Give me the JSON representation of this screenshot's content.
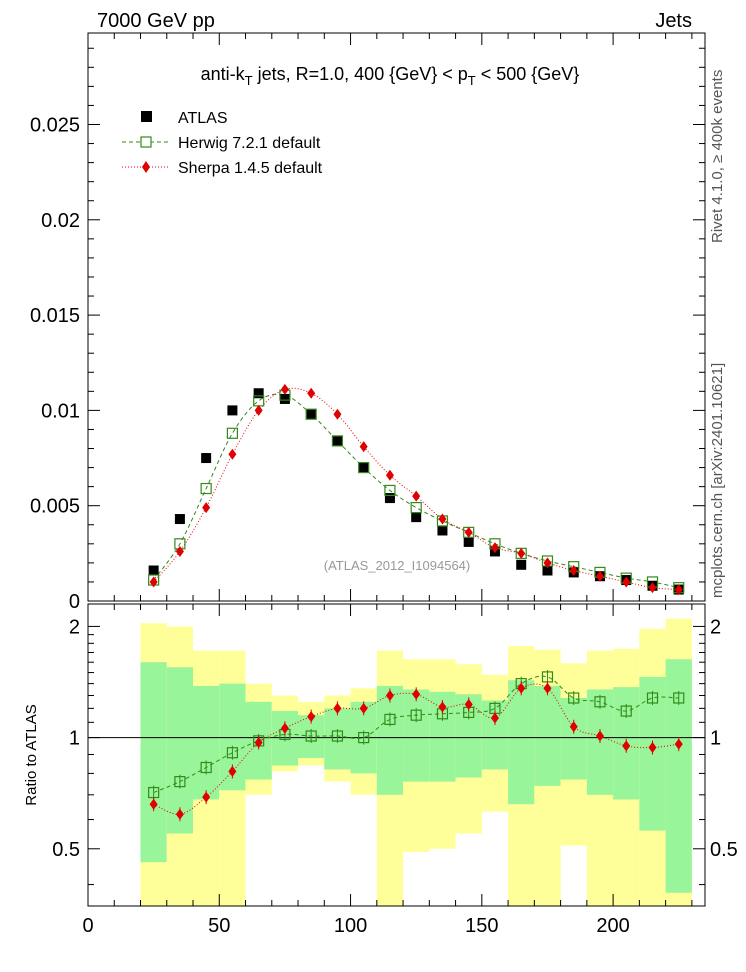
{
  "header": {
    "left": "7000 GeV pp",
    "right": "Jets"
  },
  "side_labels": {
    "rivet": "Rivet 4.1.0, ≥ 400k events",
    "mcplots": "mcplots.cern.ch [arXiv:2401.10621]"
  },
  "chart_data": {
    "type": "scatter",
    "title": {
      "prefix": "anti-k",
      "sub1": "T",
      "middle": " jets, R=1.0, 400 {GeV}   < p",
      "sub2": "T",
      "suffix": " < 500 {GeV}"
    },
    "watermark": "(ATLAS_2012_I1094564)",
    "ylabel_ratio": "Ratio to ATLAS",
    "xlim": [
      0,
      235
    ],
    "ylim_main": [
      0,
      0.0298
    ],
    "ylim_ratio": [
      0.35,
      2.3
    ],
    "x_ticks": [
      0,
      50,
      100,
      150,
      200
    ],
    "x_tick_labels": [
      "0",
      "50",
      "100",
      "150",
      "200"
    ],
    "y_ticks_main": [
      0,
      0.005,
      0.01,
      0.015,
      0.02,
      0.025
    ],
    "y_tick_labels_main": [
      "0",
      "0.005",
      "0.01",
      "0.015",
      "0.02",
      "0.025"
    ],
    "y_ticks_ratio": [
      0.5,
      1,
      2
    ],
    "y_tick_labels_ratio": [
      "0.5",
      "1",
      "2"
    ],
    "x": [
      25,
      35,
      45,
      55,
      65,
      75,
      85,
      95,
      105,
      115,
      125,
      135,
      145,
      155,
      165,
      175,
      185,
      195,
      205,
      215,
      225
    ],
    "series": [
      {
        "name": "ATLAS",
        "color": "#000000",
        "marker": "square-filled",
        "values": [
          0.0016,
          0.0043,
          0.0075,
          0.01,
          0.0109,
          0.0106,
          0.0098,
          0.0084,
          0.007,
          0.0054,
          0.0044,
          0.0037,
          0.0031,
          0.0026,
          0.0019,
          0.0016,
          0.0015,
          0.0013,
          0.0011,
          0.0008,
          0.0006
        ]
      },
      {
        "name": "Herwig 7.2.1 default",
        "color": "#338a1a",
        "marker": "square-open",
        "line": "dashed",
        "values": [
          0.0011,
          0.003,
          0.0059,
          0.0088,
          0.0105,
          0.0108,
          0.0098,
          0.0084,
          0.007,
          0.0058,
          0.0049,
          0.0042,
          0.0036,
          0.003,
          0.0025,
          0.0021,
          0.0018,
          0.0015,
          0.0012,
          0.001,
          0.0007
        ]
      },
      {
        "name": "Sherpa 1.4.5 default",
        "color": "#e00000",
        "marker": "diamond-filled",
        "line": "dotted",
        "values": [
          0.001,
          0.0026,
          0.0049,
          0.0077,
          0.01,
          0.0111,
          0.0109,
          0.0098,
          0.0081,
          0.0066,
          0.0055,
          0.0043,
          0.0036,
          0.0028,
          0.0025,
          0.002,
          0.0016,
          0.0013,
          0.001,
          0.0007,
          0.0006
        ]
      }
    ],
    "ratio": [
      {
        "name": "Herwig 7.2.1 default",
        "values": [
          0.71,
          0.76,
          0.83,
          0.91,
          0.98,
          1.02,
          1.01,
          1.01,
          1.0,
          1.12,
          1.15,
          1.16,
          1.17,
          1.2,
          1.4,
          1.46,
          1.28,
          1.25,
          1.18,
          1.28,
          1.28
        ]
      },
      {
        "name": "Sherpa 1.4.5 default",
        "values": [
          0.66,
          0.62,
          0.69,
          0.81,
          0.97,
          1.06,
          1.14,
          1.2,
          1.2,
          1.3,
          1.31,
          1.21,
          1.23,
          1.13,
          1.36,
          1.36,
          1.07,
          1.01,
          0.95,
          0.94,
          0.96
        ]
      }
    ],
    "bands": [
      {
        "x": [
          20,
          30
        ],
        "inner": [
          0.46,
          1.6
        ],
        "outer": [
          0.35,
          2.04
        ]
      },
      {
        "x": [
          30,
          40
        ],
        "inner": [
          0.55,
          1.55
        ],
        "outer": [
          0.35,
          2.0
        ]
      },
      {
        "x": [
          40,
          50
        ],
        "inner": [
          0.68,
          1.38
        ],
        "outer": [
          0.35,
          1.72
        ]
      },
      {
        "x": [
          50,
          60
        ],
        "inner": [
          0.72,
          1.4
        ],
        "outer": [
          0.35,
          1.72
        ]
      },
      {
        "x": [
          60,
          70
        ],
        "inner": [
          0.77,
          1.25
        ],
        "outer": [
          0.7,
          1.4
        ]
      },
      {
        "x": [
          70,
          80
        ],
        "inner": [
          0.84,
          1.18
        ],
        "outer": [
          0.81,
          1.3
        ]
      },
      {
        "x": [
          80,
          90
        ],
        "inner": [
          0.88,
          1.15
        ],
        "outer": [
          0.84,
          1.25
        ]
      },
      {
        "x": [
          90,
          100
        ],
        "inner": [
          0.82,
          1.2
        ],
        "outer": [
          0.76,
          1.3
        ]
      },
      {
        "x": [
          100,
          110
        ],
        "inner": [
          0.8,
          1.25
        ],
        "outer": [
          0.7,
          1.36
        ]
      },
      {
        "x": [
          110,
          120
        ],
        "inner": [
          0.7,
          1.38
        ],
        "outer": [
          0.35,
          1.72
        ]
      },
      {
        "x": [
          120,
          130
        ],
        "inner": [
          0.76,
          1.35
        ],
        "outer": [
          0.49,
          1.63
        ]
      },
      {
        "x": [
          130,
          140
        ],
        "inner": [
          0.76,
          1.33
        ],
        "outer": [
          0.5,
          1.63
        ]
      },
      {
        "x": [
          140,
          150
        ],
        "inner": [
          0.78,
          1.31
        ],
        "outer": [
          0.55,
          1.58
        ]
      },
      {
        "x": [
          150,
          160
        ],
        "inner": [
          0.82,
          1.26
        ],
        "outer": [
          0.63,
          1.48
        ]
      },
      {
        "x": [
          160,
          170
        ],
        "inner": [
          0.66,
          1.43
        ],
        "outer": [
          0.35,
          1.77
        ]
      },
      {
        "x": [
          170,
          180
        ],
        "inner": [
          0.74,
          1.38
        ],
        "outer": [
          0.35,
          1.73
        ]
      },
      {
        "x": [
          180,
          190
        ],
        "inner": [
          0.77,
          1.28
        ],
        "outer": [
          0.51,
          1.59
        ]
      },
      {
        "x": [
          190,
          200
        ],
        "inner": [
          0.7,
          1.35
        ],
        "outer": [
          0.35,
          1.72
        ]
      },
      {
        "x": [
          200,
          210
        ],
        "inner": [
          0.68,
          1.37
        ],
        "outer": [
          0.35,
          1.74
        ]
      },
      {
        "x": [
          210,
          220
        ],
        "inner": [
          0.56,
          1.46
        ],
        "outer": [
          0.35,
          1.97
        ]
      },
      {
        "x": [
          220,
          230
        ],
        "inner": [
          0.38,
          1.63
        ],
        "outer": [
          0.35,
          2.1
        ]
      }
    ]
  }
}
